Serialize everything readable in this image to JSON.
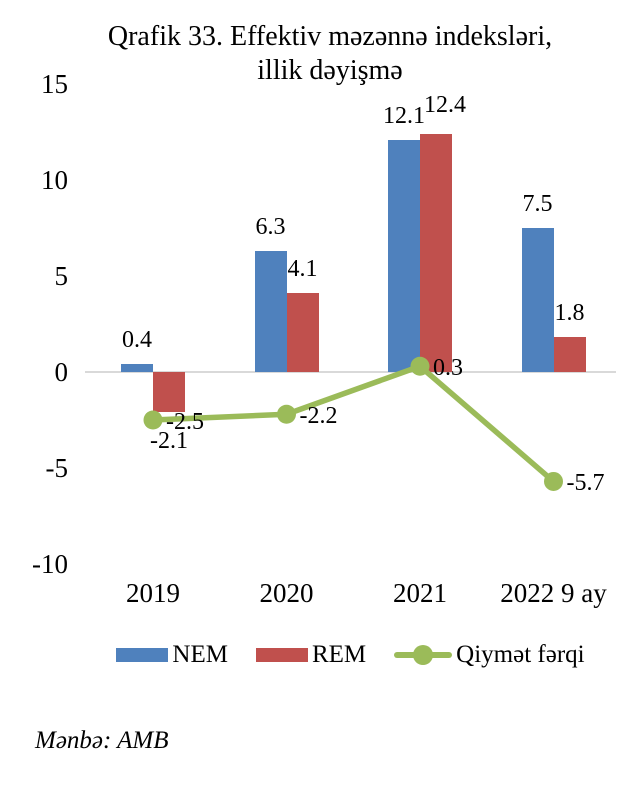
{
  "title_lines": [
    "Qrafik 33. Effektiv məzənnə indeksləri,",
    "illik dəyişmə"
  ],
  "source_note": "Mənbə: AMB",
  "colors": {
    "nem_blue": "#4F81BD",
    "rem_red": "#C0504D",
    "line_green": "#9BBB59",
    "axis_gray": "#D9D9D9",
    "text": "#000000"
  },
  "chart_data": {
    "type": "bar",
    "subtype": "grouped-bars-with-line-overlay",
    "title": "Qrafik 33. Effektiv məzənnə indeksləri, illik dəyişmə",
    "categories": [
      "2019",
      "2020",
      "2021",
      "2022 9 ay"
    ],
    "series": [
      {
        "name": "NEM",
        "type": "bar",
        "color": "#4F81BD",
        "values": [
          0.4,
          6.3,
          12.1,
          7.5
        ]
      },
      {
        "name": "REM",
        "type": "bar",
        "color": "#C0504D",
        "values": [
          -2.1,
          4.1,
          12.4,
          1.8
        ]
      },
      {
        "name": "Qiymət fərqi",
        "type": "line",
        "color": "#9BBB59",
        "values": [
          -2.5,
          -2.2,
          0.3,
          -5.7
        ]
      }
    ],
    "yticks": [
      15,
      10,
      5,
      0,
      -5,
      -10
    ],
    "ylim": [
      -10,
      15
    ],
    "grid": false,
    "data_labels": true,
    "legend_position": "bottom",
    "xlabel": "",
    "ylabel": ""
  }
}
